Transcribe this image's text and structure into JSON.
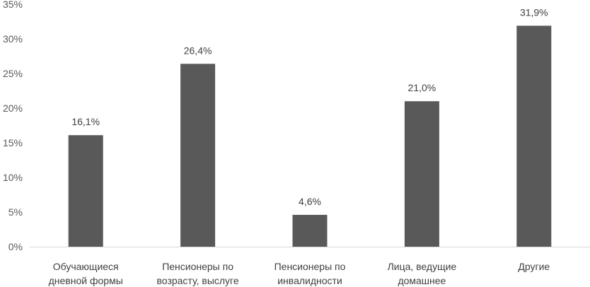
{
  "chart_data": {
    "type": "bar",
    "categories": [
      [
        "Обучающиеся",
        "дневной формы"
      ],
      [
        "Пенсионеры по",
        "возрасту, выслуге"
      ],
      [
        "Пенсионеры по",
        "инвалидности"
      ],
      [
        "Лица, ведущие",
        "домашнее"
      ],
      [
        "Другие"
      ]
    ],
    "values": [
      16.1,
      26.4,
      4.6,
      21.0,
      31.9
    ],
    "data_labels": [
      "16,1%",
      "26,4%",
      "4,6%",
      "21,0%",
      "31,9%"
    ],
    "y_ticks": [
      "0%",
      "5%",
      "10%",
      "15%",
      "20%",
      "25%",
      "30%",
      "35%"
    ],
    "ylim": [
      0,
      35
    ],
    "title": "",
    "xlabel": "",
    "ylabel": "",
    "grid": false,
    "legend": "none",
    "bar_color": "#595959",
    "axis_color": "#d9d9d9"
  }
}
